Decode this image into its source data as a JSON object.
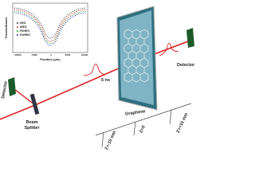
{
  "inset": {
    "y_label": "Transmittance",
    "x_label": "Position (µm)",
    "x_ticks": [
      "-10000",
      "-5000",
      "0",
      "5000",
      "10000"
    ],
    "legend": [
      "HEG",
      "IHEG",
      "Pt/HEG",
      "Pd/HEG"
    ]
  },
  "labels": {
    "detector_left": "Detector",
    "beam_splitter": [
      "Beam",
      "Splitter"
    ],
    "pulse": "5 ns",
    "sample": "Graphene",
    "detector_right": "Detector",
    "z_plus": "Z=+15 mm",
    "z_zero": "Z=0",
    "z_minus": "Z=-15 mm"
  }
}
